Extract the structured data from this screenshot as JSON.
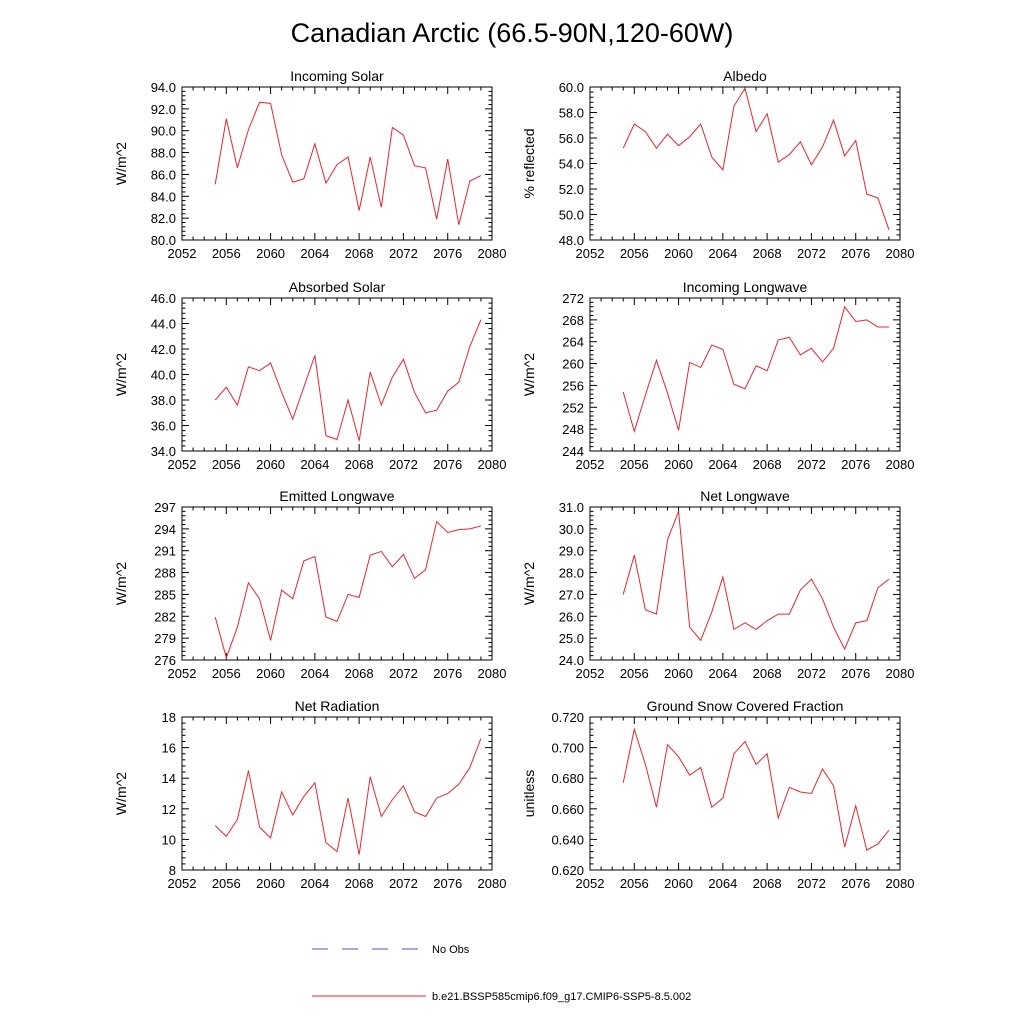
{
  "figure": {
    "title": "Canadian Arctic (66.5-90N,120-60W)",
    "colors": {
      "model": "#e8262e",
      "obs": "#4c57c9",
      "axis": "#000000"
    }
  },
  "legend": {
    "entries": [
      {
        "label": "No Obs",
        "style": "dashed",
        "color": "#4c57c9"
      },
      {
        "label": "b.e21.BSSP585cmip6.f09_g17.CMIP6-SSP5-8.5.002",
        "style": "solid",
        "color": "#e8262e"
      }
    ]
  },
  "chart_data": [
    {
      "type": "line",
      "title": "Incoming Solar",
      "xlabel": "",
      "ylabel": "W/m^2",
      "xlim": [
        2052,
        2080
      ],
      "ylim": [
        80,
        94
      ],
      "xticks": [
        "2052",
        "2056",
        "2060",
        "2064",
        "2068",
        "2072",
        "2076",
        "2080"
      ],
      "yticks": [
        "80.0",
        "82.0",
        "84.0",
        "86.0",
        "88.0",
        "90.0",
        "92.0",
        "94.0"
      ],
      "x": [
        2055,
        2056,
        2057,
        2058,
        2059,
        2060,
        2061,
        2062,
        2063,
        2064,
        2065,
        2066,
        2067,
        2068,
        2069,
        2070,
        2071,
        2072,
        2073,
        2074,
        2075,
        2076,
        2077,
        2078,
        2079
      ],
      "series": [
        {
          "values": [
            85.1,
            91.1,
            86.6,
            90.1,
            92.6,
            92.5,
            87.8,
            85.3,
            85.6,
            88.8,
            85.2,
            86.9,
            87.6,
            82.7,
            87.6,
            83.0,
            90.3,
            89.6,
            86.8,
            86.6,
            81.9,
            87.4,
            81.4,
            85.4,
            85.9
          ]
        }
      ]
    },
    {
      "type": "line",
      "title": "Albedo",
      "xlabel": "",
      "ylabel": "% reflected",
      "xlim": [
        2052,
        2080
      ],
      "ylim": [
        48,
        60
      ],
      "xticks": [
        "2052",
        "2056",
        "2060",
        "2064",
        "2068",
        "2072",
        "2076",
        "2080"
      ],
      "yticks": [
        "48.0",
        "50.0",
        "52.0",
        "54.0",
        "56.0",
        "58.0",
        "60.0"
      ],
      "x": [
        2055,
        2056,
        2057,
        2058,
        2059,
        2060,
        2061,
        2062,
        2063,
        2064,
        2065,
        2066,
        2067,
        2068,
        2069,
        2070,
        2071,
        2072,
        2073,
        2074,
        2075,
        2076,
        2077,
        2078,
        2079
      ],
      "series": [
        {
          "values": [
            55.2,
            57.1,
            56.5,
            55.2,
            56.3,
            55.4,
            56.1,
            57.1,
            54.5,
            53.5,
            58.5,
            59.9,
            56.5,
            57.9,
            54.1,
            54.7,
            55.7,
            53.9,
            55.3,
            57.4,
            54.6,
            55.8,
            51.6,
            51.3,
            48.8
          ]
        }
      ]
    },
    {
      "type": "line",
      "title": "Absorbed Solar",
      "xlabel": "",
      "ylabel": "W/m^2",
      "xlim": [
        2052,
        2080
      ],
      "ylim": [
        34,
        46
      ],
      "xticks": [
        "2052",
        "2056",
        "2060",
        "2064",
        "2068",
        "2072",
        "2076",
        "2080"
      ],
      "yticks": [
        "34.0",
        "36.0",
        "38.0",
        "40.0",
        "42.0",
        "44.0",
        "46.0"
      ],
      "x": [
        2055,
        2056,
        2057,
        2058,
        2059,
        2060,
        2061,
        2062,
        2063,
        2064,
        2065,
        2066,
        2067,
        2068,
        2069,
        2070,
        2071,
        2072,
        2073,
        2074,
        2075,
        2076,
        2077,
        2078,
        2079
      ],
      "series": [
        {
          "values": [
            38.0,
            39.0,
            37.6,
            40.6,
            40.3,
            40.9,
            38.6,
            36.5,
            39.0,
            41.5,
            35.2,
            34.9,
            38.0,
            34.8,
            40.2,
            37.6,
            39.8,
            41.2,
            38.6,
            37.0,
            37.2,
            38.7,
            39.4,
            42.2,
            44.3
          ]
        }
      ]
    },
    {
      "type": "line",
      "title": "Incoming Longwave",
      "xlabel": "",
      "ylabel": "W/m^2",
      "xlim": [
        2052,
        2080
      ],
      "ylim": [
        244,
        272
      ],
      "xticks": [
        "2052",
        "2056",
        "2060",
        "2064",
        "2068",
        "2072",
        "2076",
        "2080"
      ],
      "yticks": [
        "244",
        "248",
        "252",
        "256",
        "260",
        "264",
        "268",
        "272"
      ],
      "x": [
        2055,
        2056,
        2057,
        2058,
        2059,
        2060,
        2061,
        2062,
        2063,
        2064,
        2065,
        2066,
        2067,
        2068,
        2069,
        2070,
        2071,
        2072,
        2073,
        2074,
        2075,
        2076,
        2077,
        2078,
        2079
      ],
      "series": [
        {
          "values": [
            254.8,
            247.6,
            254.2,
            260.6,
            254.6,
            247.8,
            260.2,
            259.3,
            263.4,
            262.6,
            256.2,
            255.4,
            259.6,
            258.7,
            264.3,
            264.8,
            261.6,
            262.8,
            260.3,
            262.8,
            270.4,
            267.7,
            268.0,
            266.7,
            266.7
          ]
        }
      ]
    },
    {
      "type": "line",
      "title": "Emitted Longwave",
      "xlabel": "",
      "ylabel": "W/m^2",
      "xlim": [
        2052,
        2080
      ],
      "ylim": [
        276,
        297
      ],
      "xticks": [
        "2052",
        "2056",
        "2060",
        "2064",
        "2068",
        "2072",
        "2076",
        "2080"
      ],
      "yticks": [
        "276",
        "279",
        "282",
        "285",
        "288",
        "291",
        "294",
        "297"
      ],
      "x": [
        2055,
        2056,
        2057,
        2058,
        2059,
        2060,
        2061,
        2062,
        2063,
        2064,
        2065,
        2066,
        2067,
        2068,
        2069,
        2070,
        2071,
        2072,
        2073,
        2074,
        2075,
        2076,
        2077,
        2078,
        2079
      ],
      "series": [
        {
          "values": [
            281.9,
            276.3,
            280.5,
            286.6,
            284.4,
            278.7,
            285.6,
            284.4,
            289.6,
            290.2,
            281.9,
            281.3,
            285.0,
            284.6,
            290.4,
            290.9,
            288.8,
            290.5,
            287.2,
            288.4,
            295.0,
            293.5,
            293.9,
            294.0,
            294.4
          ]
        }
      ]
    },
    {
      "type": "line",
      "title": "Net Longwave",
      "xlabel": "",
      "ylabel": "W/m^2",
      "xlim": [
        2052,
        2080
      ],
      "ylim": [
        24,
        31
      ],
      "xticks": [
        "2052",
        "2056",
        "2060",
        "2064",
        "2068",
        "2072",
        "2076",
        "2080"
      ],
      "yticks": [
        "24.0",
        "25.0",
        "26.0",
        "27.0",
        "28.0",
        "29.0",
        "30.0",
        "31.0"
      ],
      "x": [
        2055,
        2056,
        2057,
        2058,
        2059,
        2060,
        2061,
        2062,
        2063,
        2064,
        2065,
        2066,
        2067,
        2068,
        2069,
        2070,
        2071,
        2072,
        2073,
        2074,
        2075,
        2076,
        2077,
        2078,
        2079
      ],
      "series": [
        {
          "values": [
            27.0,
            28.8,
            26.3,
            26.1,
            29.5,
            30.8,
            25.5,
            24.9,
            26.2,
            27.8,
            25.4,
            25.7,
            25.4,
            25.8,
            26.1,
            26.1,
            27.2,
            27.7,
            26.8,
            25.5,
            24.5,
            25.7,
            25.8,
            27.3,
            27.7
          ]
        }
      ]
    },
    {
      "type": "line",
      "title": "Net Radiation",
      "xlabel": "",
      "ylabel": "W/m^2",
      "xlim": [
        2052,
        2080
      ],
      "ylim": [
        8,
        18
      ],
      "xticks": [
        "2052",
        "2056",
        "2060",
        "2064",
        "2068",
        "2072",
        "2076",
        "2080"
      ],
      "yticks": [
        "8",
        "10",
        "12",
        "14",
        "16",
        "18"
      ],
      "x": [
        2055,
        2056,
        2057,
        2058,
        2059,
        2060,
        2061,
        2062,
        2063,
        2064,
        2065,
        2066,
        2067,
        2068,
        2069,
        2070,
        2071,
        2072,
        2073,
        2074,
        2075,
        2076,
        2077,
        2078,
        2079
      ],
      "series": [
        {
          "values": [
            10.9,
            10.2,
            11.3,
            14.5,
            10.8,
            10.1,
            13.1,
            11.6,
            12.8,
            13.7,
            9.8,
            9.2,
            12.7,
            9.0,
            14.1,
            11.5,
            12.6,
            13.5,
            11.8,
            11.5,
            12.7,
            13.0,
            13.6,
            14.7,
            16.6
          ]
        }
      ]
    },
    {
      "type": "line",
      "title": "Ground Snow Covered Fraction",
      "xlabel": "",
      "ylabel": "unitless",
      "xlim": [
        2052,
        2080
      ],
      "ylim": [
        0.62,
        0.72
      ],
      "xticks": [
        "2052",
        "2056",
        "2060",
        "2064",
        "2068",
        "2072",
        "2076",
        "2080"
      ],
      "yticks": [
        "0.620",
        "0.640",
        "0.660",
        "0.680",
        "0.700",
        "0.720"
      ],
      "x": [
        2055,
        2056,
        2057,
        2058,
        2059,
        2060,
        2061,
        2062,
        2063,
        2064,
        2065,
        2066,
        2067,
        2068,
        2069,
        2070,
        2071,
        2072,
        2073,
        2074,
        2075,
        2076,
        2077,
        2078,
        2079
      ],
      "series": [
        {
          "values": [
            0.677,
            0.712,
            0.689,
            0.661,
            0.702,
            0.694,
            0.682,
            0.687,
            0.661,
            0.667,
            0.696,
            0.704,
            0.689,
            0.696,
            0.654,
            0.674,
            0.671,
            0.67,
            0.686,
            0.675,
            0.635,
            0.662,
            0.633,
            0.637,
            0.646
          ]
        }
      ]
    }
  ]
}
